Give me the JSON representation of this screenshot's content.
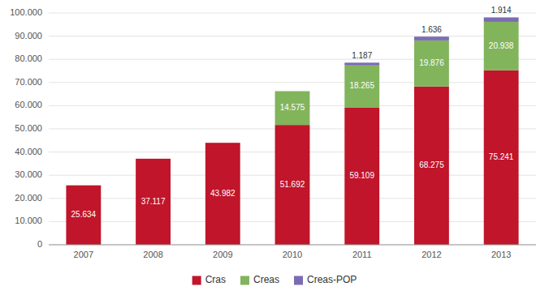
{
  "chart_data": {
    "type": "bar",
    "stacked": true,
    "categories": [
      "2007",
      "2008",
      "2009",
      "2010",
      "2011",
      "2012",
      "2013"
    ],
    "series": [
      {
        "name": "Cras",
        "color": "#c0152a",
        "values": [
          25634,
          37117,
          43982,
          51692,
          59109,
          68275,
          75241
        ],
        "value_labels": [
          "25.634",
          "37.117",
          "43.982",
          "51.692",
          "59.109",
          "68.275",
          "75.241"
        ]
      },
      {
        "name": "Creas",
        "color": "#82b45c",
        "values": [
          0,
          0,
          0,
          14575,
          18265,
          19876,
          20938
        ],
        "value_labels": [
          null,
          null,
          null,
          "14.575",
          "18.265",
          "19.876",
          "20.938"
        ]
      },
      {
        "name": "Creas-POP",
        "color": "#7b6bb5",
        "values": [
          0,
          0,
          0,
          0,
          1187,
          1636,
          1914
        ],
        "value_labels": [
          null,
          null,
          null,
          null,
          "1.187",
          "1.636",
          "1.914"
        ]
      }
    ],
    "ylim": [
      0,
      100000
    ],
    "yticks": [
      0,
      {
        "value": 10000,
        "label": "10.000"
      },
      {
        "value": 20000,
        "label": "20.000"
      },
      {
        "value": 30000,
        "label": "30.000"
      },
      {
        "value": 40000,
        "label": "40.000"
      },
      {
        "value": 50000,
        "label": "50.000"
      },
      {
        "value": 60000,
        "label": "60.000"
      },
      {
        "value": 70000,
        "label": "70.000"
      },
      {
        "value": 80000,
        "label": "80.000"
      },
      {
        "value": 90000,
        "label": "90.000"
      },
      {
        "value": 100000,
        "label": "100.000"
      }
    ],
    "grid": true,
    "data_labels": true,
    "legend": "bottom"
  }
}
